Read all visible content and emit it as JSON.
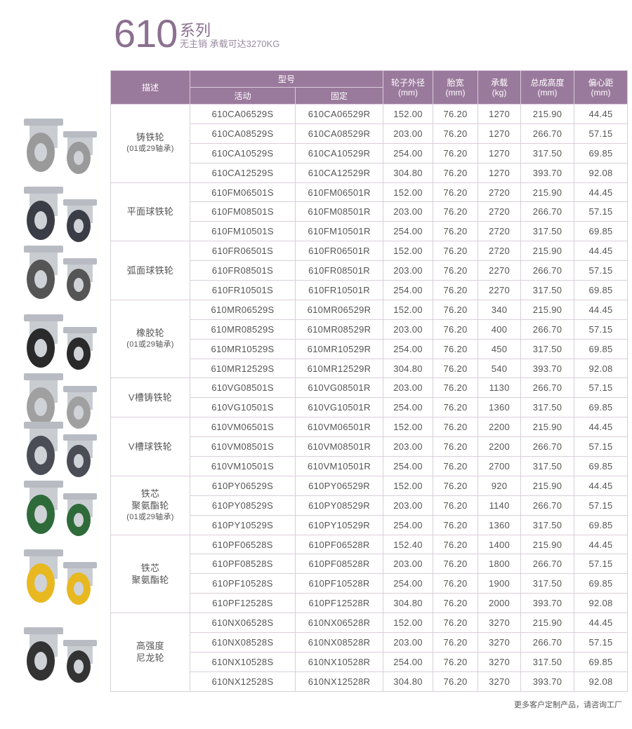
{
  "header": {
    "series_number": "610",
    "series_label": "系列",
    "subtitle": "无主销  承载可达3270KG"
  },
  "table": {
    "headers": {
      "description": "描述",
      "model": "型号",
      "swivel": "活动",
      "rigid": "固定",
      "diameter": "轮子外径",
      "width": "胎宽",
      "load": "承载",
      "height": "总成高度",
      "offset": "偏心距",
      "unit_mm": "(mm)",
      "unit_kg": "(kg)"
    },
    "groups": [
      {
        "name": [
          "铸铁轮"
        ],
        "note": "(01或29轴承)",
        "wheel_color": "#9a9a9a",
        "rows": [
          [
            "610CA06529S",
            "610CA06529R",
            "152.00",
            "76.20",
            "1270",
            "215.90",
            "44.45"
          ],
          [
            "610CA08529S",
            "610CA08529R",
            "203.00",
            "76.20",
            "1270",
            "266.70",
            "57.15"
          ],
          [
            "610CA10529S",
            "610CA10529R",
            "254.00",
            "76.20",
            "1270",
            "317.50",
            "69.85"
          ],
          [
            "610CA12529S",
            "610CA12529R",
            "304.80",
            "76.20",
            "1270",
            "393.70",
            "92.08"
          ]
        ]
      },
      {
        "name": [
          "平面球铁轮"
        ],
        "note": "",
        "wheel_color": "#3a3d45",
        "rows": [
          [
            "610FM06501S",
            "610FM06501R",
            "152.00",
            "76.20",
            "2720",
            "215.90",
            "44.45"
          ],
          [
            "610FM08501S",
            "610FM08501R",
            "203.00",
            "76.20",
            "2720",
            "266.70",
            "57.15"
          ],
          [
            "610FM10501S",
            "610FM10501R",
            "254.00",
            "76.20",
            "2720",
            "317.50",
            "69.85"
          ]
        ]
      },
      {
        "name": [
          "弧面球铁轮"
        ],
        "note": "",
        "wheel_color": "#555555",
        "rows": [
          [
            "610FR06501S",
            "610FR06501R",
            "152.00",
            "76.20",
            "2720",
            "215.90",
            "44.45"
          ],
          [
            "610FR08501S",
            "610FR08501R",
            "203.00",
            "76.20",
            "2270",
            "266.70",
            "57.15"
          ],
          [
            "610FR10501S",
            "610FR10501R",
            "254.00",
            "76.20",
            "2270",
            "317.50",
            "69.85"
          ]
        ]
      },
      {
        "name": [
          "橡胶轮"
        ],
        "note": "(01或29轴承)",
        "wheel_color": "#2a2a2a",
        "rows": [
          [
            "610MR06529S",
            "610MR06529R",
            "152.00",
            "76.20",
            "340",
            "215.90",
            "44.45"
          ],
          [
            "610MR08529S",
            "610MR08529R",
            "203.00",
            "76.20",
            "400",
            "266.70",
            "57.15"
          ],
          [
            "610MR10529S",
            "610MR10529R",
            "254.00",
            "76.20",
            "450",
            "317.50",
            "69.85"
          ],
          [
            "610MR12529S",
            "610MR12529R",
            "304.80",
            "76.20",
            "540",
            "393.70",
            "92.08"
          ]
        ]
      },
      {
        "name": [
          "V槽铸铁轮"
        ],
        "note": "",
        "wheel_color": "#a0a0a0",
        "rows": [
          [
            "610VG08501S",
            "610VG08501R",
            "203.00",
            "76.20",
            "1130",
            "266.70",
            "57.15"
          ],
          [
            "610VG10501S",
            "610VG10501R",
            "254.00",
            "76.20",
            "1360",
            "317.50",
            "69.85"
          ]
        ]
      },
      {
        "name": [
          "V槽球铁轮"
        ],
        "note": "",
        "wheel_color": "#4a4d55",
        "rows": [
          [
            "610VM06501S",
            "610VM06501R",
            "152.00",
            "76.20",
            "2200",
            "215.90",
            "44.45"
          ],
          [
            "610VM08501S",
            "610VM08501R",
            "203.00",
            "76.20",
            "2200",
            "266.70",
            "57.15"
          ],
          [
            "610VM10501S",
            "610VM10501R",
            "254.00",
            "76.20",
            "2700",
            "317.50",
            "69.85"
          ]
        ]
      },
      {
        "name": [
          "铁芯",
          "聚氨酯轮"
        ],
        "note": "(01或29轴承)",
        "wheel_color": "#2f6b3a",
        "rows": [
          [
            "610PY06529S",
            "610PY06529R",
            "152.00",
            "76.20",
            "920",
            "215.90",
            "44.45"
          ],
          [
            "610PY08529S",
            "610PY08529R",
            "203.00",
            "76.20",
            "1140",
            "266.70",
            "57.15"
          ],
          [
            "610PY10529S",
            "610PY10529R",
            "254.00",
            "76.20",
            "1360",
            "317.50",
            "69.85"
          ]
        ]
      },
      {
        "name": [
          "铁芯",
          "聚氨酯轮"
        ],
        "note": "",
        "wheel_color": "#e8b820",
        "rows": [
          [
            "610PF06528S",
            "610PF06528R",
            "152.40",
            "76.20",
            "1400",
            "215.90",
            "44.45"
          ],
          [
            "610PF08528S",
            "610PF08528R",
            "203.00",
            "76.20",
            "1800",
            "266.70",
            "57.15"
          ],
          [
            "610PF10528S",
            "610PF10528R",
            "254.00",
            "76.20",
            "1900",
            "317.50",
            "69.85"
          ],
          [
            "610PF12528S",
            "610PF12528R",
            "304.80",
            "76.20",
            "2000",
            "393.70",
            "92.08"
          ]
        ]
      },
      {
        "name": [
          "高强度",
          "尼龙轮"
        ],
        "note": "",
        "wheel_color": "#333333",
        "rows": [
          [
            "610NX06528S",
            "610NX06528R",
            "152.00",
            "76.20",
            "3270",
            "215.90",
            "44.45"
          ],
          [
            "610NX08528S",
            "610NX08528R",
            "203.00",
            "76.20",
            "3270",
            "266.70",
            "57.15"
          ],
          [
            "610NX10528S",
            "610NX10528R",
            "254.00",
            "76.20",
            "3270",
            "317.50",
            "69.85"
          ],
          [
            "610NX12528S",
            "610NX12528R",
            "304.80",
            "76.20",
            "3270",
            "393.70",
            "92.08"
          ]
        ]
      }
    ]
  },
  "footer": "更多客户定制产品，请咨询工厂"
}
